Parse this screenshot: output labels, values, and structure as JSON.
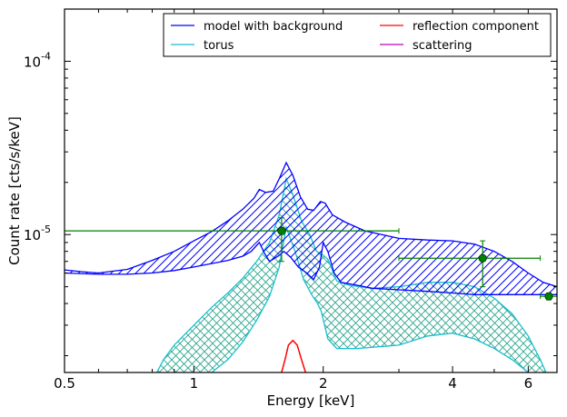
{
  "chart_data": {
    "type": "line",
    "xlabel": "Energy [keV]",
    "ylabel": "Count rate [cts/s/keV]",
    "x_scale": "log",
    "y_scale": "log",
    "xlim": [
      0.5,
      7.0
    ],
    "ylim": [
      1.6e-06,
      0.0002
    ],
    "x_ticks": [
      {
        "value": 0.5,
        "label": "0.5"
      },
      {
        "value": 1,
        "label": "1"
      },
      {
        "value": 2,
        "label": "2"
      },
      {
        "value": 4,
        "label": "4"
      },
      {
        "value": 6,
        "label": "6"
      }
    ],
    "y_ticks": [
      {
        "value": 1e-05,
        "base": "10",
        "exp": "-5"
      },
      {
        "value": 0.0001,
        "base": "10",
        "exp": "-4"
      }
    ],
    "legend": {
      "placement": "top-right",
      "columns": 2,
      "entries": [
        {
          "label": "model with background",
          "color": "#0000ff"
        },
        {
          "label": "torus",
          "color": "#17becf"
        },
        {
          "label": "reflection component",
          "color": "#ff0000"
        },
        {
          "label": "scattering",
          "color": "#bf00bf"
        }
      ]
    },
    "series": [
      {
        "name": "model with background",
        "color": "#0000ff",
        "style": "hatched band",
        "upper": [
          [
            0.5,
            6.25e-06
          ],
          [
            0.55,
            6.1e-06
          ],
          [
            0.6,
            6e-06
          ],
          [
            0.7,
            6.3e-06
          ],
          [
            0.8,
            7.1e-06
          ],
          [
            0.9,
            8e-06
          ],
          [
            1.0,
            9.2e-06
          ],
          [
            1.1,
            1.04e-05
          ],
          [
            1.2,
            1.2e-05
          ],
          [
            1.3,
            1.4e-05
          ],
          [
            1.38,
            1.62e-05
          ],
          [
            1.42,
            1.82e-05
          ],
          [
            1.47,
            1.75e-05
          ],
          [
            1.53,
            1.78e-05
          ],
          [
            1.58,
            2.1e-05
          ],
          [
            1.64,
            2.6e-05
          ],
          [
            1.7,
            2.2e-05
          ],
          [
            1.77,
            1.65e-05
          ],
          [
            1.84,
            1.4e-05
          ],
          [
            1.9,
            1.38e-05
          ],
          [
            1.97,
            1.55e-05
          ],
          [
            2.02,
            1.52e-05
          ],
          [
            2.1,
            1.3e-05
          ],
          [
            2.25,
            1.18e-05
          ],
          [
            2.5,
            1.05e-05
          ],
          [
            3.0,
            9.5e-06
          ],
          [
            3.5,
            9.3e-06
          ],
          [
            4.0,
            9.2e-06
          ],
          [
            4.5,
            8.8e-06
          ],
          [
            5.0,
            8e-06
          ],
          [
            5.5,
            7e-06
          ],
          [
            6.0,
            6e-06
          ],
          [
            6.5,
            5.3e-06
          ],
          [
            7.0,
            5e-06
          ]
        ],
        "lower": [
          [
            0.5,
            6e-06
          ],
          [
            0.6,
            5.9e-06
          ],
          [
            0.7,
            5.9e-06
          ],
          [
            0.8,
            6e-06
          ],
          [
            0.9,
            6.2e-06
          ],
          [
            1.0,
            6.5e-06
          ],
          [
            1.1,
            6.8e-06
          ],
          [
            1.2,
            7.1e-06
          ],
          [
            1.3,
            7.5e-06
          ],
          [
            1.36,
            8e-06
          ],
          [
            1.42,
            9e-06
          ],
          [
            1.46,
            7.8e-06
          ],
          [
            1.5,
            7e-06
          ],
          [
            1.57,
            7.5e-06
          ],
          [
            1.62,
            8e-06
          ],
          [
            1.68,
            7.4e-06
          ],
          [
            1.75,
            6.5e-06
          ],
          [
            1.83,
            6e-06
          ],
          [
            1.9,
            5.5e-06
          ],
          [
            1.96,
            6.5e-06
          ],
          [
            2.0,
            9e-06
          ],
          [
            2.05,
            8e-06
          ],
          [
            2.12,
            6e-06
          ],
          [
            2.2,
            5.3e-06
          ],
          [
            2.4,
            5.1e-06
          ],
          [
            2.6,
            4.9e-06
          ],
          [
            3.0,
            4.8e-06
          ],
          [
            3.5,
            4.7e-06
          ],
          [
            4.0,
            4.6e-06
          ],
          [
            4.5,
            4.5e-06
          ],
          [
            5.0,
            4.5e-06
          ],
          [
            6.0,
            4.5e-06
          ],
          [
            7.0,
            4.5e-06
          ]
        ]
      },
      {
        "name": "torus",
        "color": "#17becf",
        "style": "cross-hatched band",
        "upper": [
          [
            0.82,
            1.6e-06
          ],
          [
            0.85,
            1.9e-06
          ],
          [
            0.9,
            2.3e-06
          ],
          [
            1.0,
            3e-06
          ],
          [
            1.1,
            3.8e-06
          ],
          [
            1.2,
            4.6e-06
          ],
          [
            1.3,
            5.6e-06
          ],
          [
            1.4,
            7e-06
          ],
          [
            1.5,
            9e-06
          ],
          [
            1.58,
            1.3e-05
          ],
          [
            1.64,
            2.1e-05
          ],
          [
            1.7,
            1.7e-05
          ],
          [
            1.78,
            1.2e-05
          ],
          [
            1.86,
            1e-05
          ],
          [
            1.93,
            8e-06
          ],
          [
            2.0,
            7.6e-06
          ],
          [
            2.05,
            7.2e-06
          ],
          [
            2.15,
            5.4e-06
          ],
          [
            2.3,
            5.1e-06
          ],
          [
            2.6,
            4.9e-06
          ],
          [
            3.0,
            5e-06
          ],
          [
            3.5,
            5.3e-06
          ],
          [
            4.0,
            5.3e-06
          ],
          [
            4.5,
            5e-06
          ],
          [
            5.0,
            4.3e-06
          ],
          [
            5.5,
            3.5e-06
          ],
          [
            6.0,
            2.6e-06
          ],
          [
            6.4,
            1.9e-06
          ],
          [
            6.6,
            1.6e-06
          ]
        ],
        "lower": [
          [
            1.1,
            1.6e-06
          ],
          [
            1.2,
            1.9e-06
          ],
          [
            1.3,
            2.4e-06
          ],
          [
            1.4,
            3.2e-06
          ],
          [
            1.5,
            4.4e-06
          ],
          [
            1.58,
            6.5e-06
          ],
          [
            1.64,
            1.1e-05
          ],
          [
            1.72,
            8e-06
          ],
          [
            1.8,
            5.5e-06
          ],
          [
            1.88,
            4.5e-06
          ],
          [
            1.94,
            4e-06
          ],
          [
            1.98,
            3.6e-06
          ],
          [
            2.05,
            2.5e-06
          ],
          [
            2.15,
            2.2e-06
          ],
          [
            2.4,
            2.2e-06
          ],
          [
            3.0,
            2.3e-06
          ],
          [
            3.5,
            2.6e-06
          ],
          [
            4.0,
            2.7e-06
          ],
          [
            4.5,
            2.5e-06
          ],
          [
            5.0,
            2.2e-06
          ],
          [
            5.5,
            1.9e-06
          ],
          [
            6.0,
            1.6e-06
          ]
        ]
      },
      {
        "name": "reflection component",
        "color": "#ff0000",
        "style": "line",
        "points": [
          [
            1.6,
            1.6e-06
          ],
          [
            1.63,
            1.9e-06
          ],
          [
            1.66,
            2.3e-06
          ],
          [
            1.7,
            2.45e-06
          ],
          [
            1.74,
            2.3e-06
          ],
          [
            1.78,
            1.9e-06
          ],
          [
            1.82,
            1.6e-06
          ]
        ]
      },
      {
        "name": "scattering",
        "color": "#bf00bf",
        "style": "line",
        "points": []
      },
      {
        "name": "data",
        "color": "#008000",
        "style": "points with error bars",
        "points": [
          {
            "x": 1.6,
            "y": 1.05e-05,
            "xlo": 0.5,
            "xhi": 3.0,
            "ylo": 7e-06,
            "yhi": 1.25e-05
          },
          {
            "x": 4.7,
            "y": 7.3e-06,
            "xlo": 3.0,
            "xhi": 6.4,
            "ylo": 5e-06,
            "yhi": 9.2e-06
          },
          {
            "x": 6.7,
            "y": 4.4e-06,
            "xlo": 6.4,
            "xhi": 7.0,
            "ylo": 4.2e-06,
            "yhi": 4.6e-06
          }
        ]
      }
    ]
  }
}
